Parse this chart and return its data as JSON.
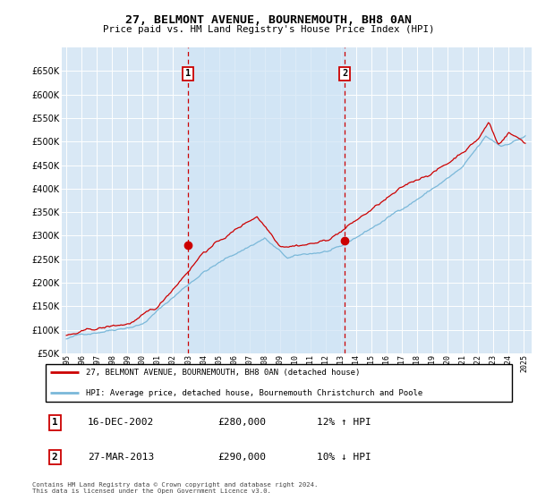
{
  "title": "27, BELMONT AVENUE, BOURNEMOUTH, BH8 0AN",
  "subtitle": "Price paid vs. HM Land Registry's House Price Index (HPI)",
  "legend_line1": "27, BELMONT AVENUE, BOURNEMOUTH, BH8 0AN (detached house)",
  "legend_line2": "HPI: Average price, detached house, Bournemouth Christchurch and Poole",
  "transaction1_date": "16-DEC-2002",
  "transaction1_price": "£280,000",
  "transaction1_hpi": "12% ↑ HPI",
  "transaction2_date": "27-MAR-2013",
  "transaction2_price": "£290,000",
  "transaction2_hpi": "10% ↓ HPI",
  "footer": "Contains HM Land Registry data © Crown copyright and database right 2024.\nThis data is licensed under the Open Government Licence v3.0.",
  "plot_bg_color": "#d9e8f5",
  "hpi_line_color": "#7ab8d9",
  "price_line_color": "#cc0000",
  "vline_color": "#cc0000",
  "fill_color": "#d0e5f2",
  "ylim": [
    50000,
    700000
  ],
  "yticks": [
    50000,
    100000,
    150000,
    200000,
    250000,
    300000,
    350000,
    400000,
    450000,
    500000,
    550000,
    600000,
    650000
  ],
  "transaction1_x": 2002.96,
  "transaction1_y": 280000,
  "transaction2_x": 2013.24,
  "transaction2_y": 290000,
  "xmin": 1994.7,
  "xmax": 2025.5
}
